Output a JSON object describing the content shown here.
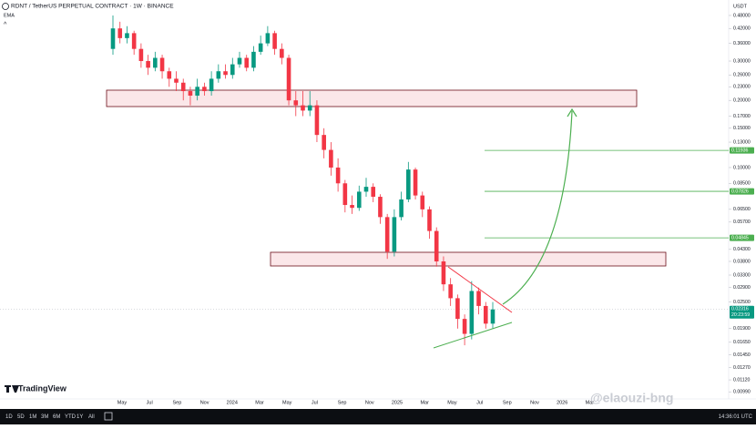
{
  "header": {
    "symbol": "RDNT / TetherUS PERPETUAL CONTRACT · 1W · BINANCE",
    "indicator": "EMA",
    "currency": "USDT"
  },
  "chart_data": {
    "type": "candlestick",
    "log_scale": true,
    "up_color": "#089981",
    "down_color": "#f23645",
    "ylim": [
      0.563,
      0.0092
    ],
    "yticks": [
      {
        "value": 0.48,
        "label": "0.48000"
      },
      {
        "value": 0.42,
        "label": "0.42000"
      },
      {
        "value": 0.36,
        "label": "0.36000"
      },
      {
        "value": 0.3,
        "label": "0.30000"
      },
      {
        "value": 0.26,
        "label": "0.26000"
      },
      {
        "value": 0.23,
        "label": "0.23000"
      },
      {
        "value": 0.2,
        "label": "0.20000"
      },
      {
        "value": 0.17,
        "label": "0.17000"
      },
      {
        "value": 0.15,
        "label": "0.15000"
      },
      {
        "value": 0.13,
        "label": "0.13000"
      },
      {
        "value": 0.1,
        "label": "0.10000"
      },
      {
        "value": 0.085,
        "label": "0.08500"
      },
      {
        "value": 0.065,
        "label": "0.06500"
      },
      {
        "value": 0.057,
        "label": "0.05700"
      },
      {
        "value": 0.043,
        "label": "0.04300"
      },
      {
        "value": 0.038,
        "label": "0.03800"
      },
      {
        "value": 0.033,
        "label": "0.03300"
      },
      {
        "value": 0.029,
        "label": "0.02900"
      },
      {
        "value": 0.025,
        "label": "0.02500"
      },
      {
        "value": 0.019,
        "label": "0.01900"
      },
      {
        "value": 0.0165,
        "label": "0.01650"
      },
      {
        "value": 0.0145,
        "label": "0.01450"
      },
      {
        "value": 0.0127,
        "label": "0.01270"
      },
      {
        "value": 0.0112,
        "label": "0.01120"
      },
      {
        "value": 0.0099,
        "label": "0.00990"
      }
    ],
    "target_levels": [
      {
        "value": 0.11936,
        "label": "0.11936"
      },
      {
        "value": 0.07826,
        "label": "0.07826"
      },
      {
        "value": 0.04845,
        "label": "0.04845"
      }
    ],
    "current_price": {
      "value": 0.02316,
      "label": "0.02316"
    },
    "countdown": "20:23:59",
    "x_labels": [
      "May",
      "Jul",
      "Sep",
      "Nov",
      "2024",
      "Mar",
      "May",
      "Jul",
      "Sep",
      "Nov",
      "2025",
      "Mar",
      "May",
      "Jul",
      "Sep",
      "Nov",
      "2026",
      "Mar"
    ],
    "open": [
      0.34,
      0.42,
      0.38,
      0.4,
      0.34,
      0.3,
      0.28,
      0.31,
      0.27,
      0.25,
      0.24,
      0.22,
      0.21,
      0.23,
      0.22,
      0.25,
      0.27,
      0.26,
      0.29,
      0.31,
      0.28,
      0.33,
      0.36,
      0.4,
      0.34,
      0.31,
      0.2,
      0.19,
      0.18,
      0.19,
      0.14,
      0.12,
      0.1,
      0.085,
      0.068,
      0.066,
      0.078,
      0.082,
      0.074,
      0.06,
      0.042,
      0.06,
      0.072,
      0.098,
      0.075,
      0.065,
      0.052,
      0.038,
      0.03,
      0.026,
      0.021,
      0.018,
      0.028,
      0.024,
      0.02
    ],
    "high": [
      0.48,
      0.45,
      0.43,
      0.41,
      0.36,
      0.32,
      0.33,
      0.32,
      0.28,
      0.27,
      0.25,
      0.23,
      0.25,
      0.24,
      0.27,
      0.29,
      0.29,
      0.31,
      0.33,
      0.32,
      0.35,
      0.39,
      0.43,
      0.41,
      0.36,
      0.32,
      0.22,
      0.22,
      0.22,
      0.2,
      0.15,
      0.13,
      0.11,
      0.088,
      0.075,
      0.083,
      0.09,
      0.085,
      0.076,
      0.062,
      0.065,
      0.078,
      0.106,
      0.1,
      0.078,
      0.067,
      0.054,
      0.04,
      0.032,
      0.027,
      0.022,
      0.031,
      0.029,
      0.025,
      0.025
    ],
    "low": [
      0.32,
      0.36,
      0.36,
      0.32,
      0.28,
      0.26,
      0.27,
      0.25,
      0.23,
      0.22,
      0.2,
      0.19,
      0.2,
      0.21,
      0.21,
      0.24,
      0.25,
      0.25,
      0.28,
      0.27,
      0.27,
      0.32,
      0.35,
      0.32,
      0.29,
      0.19,
      0.17,
      0.17,
      0.17,
      0.13,
      0.11,
      0.092,
      0.078,
      0.063,
      0.062,
      0.064,
      0.074,
      0.07,
      0.056,
      0.039,
      0.04,
      0.058,
      0.07,
      0.072,
      0.06,
      0.048,
      0.036,
      0.028,
      0.024,
      0.019,
      0.016,
      0.017,
      0.022,
      0.019,
      0.019
    ],
    "close": [
      0.42,
      0.38,
      0.4,
      0.34,
      0.3,
      0.28,
      0.31,
      0.27,
      0.25,
      0.24,
      0.22,
      0.21,
      0.23,
      0.22,
      0.25,
      0.27,
      0.26,
      0.29,
      0.31,
      0.28,
      0.33,
      0.36,
      0.4,
      0.34,
      0.31,
      0.2,
      0.19,
      0.18,
      0.19,
      0.14,
      0.12,
      0.1,
      0.085,
      0.068,
      0.066,
      0.078,
      0.082,
      0.074,
      0.06,
      0.042,
      0.06,
      0.072,
      0.098,
      0.075,
      0.065,
      0.052,
      0.038,
      0.03,
      0.026,
      0.021,
      0.018,
      0.028,
      0.024,
      0.02,
      0.02316
    ]
  },
  "footer": {
    "logo": "TradingView",
    "ranges": [
      "1D",
      "5D",
      "1M",
      "3M",
      "6M",
      "YTD",
      "1Y",
      "All"
    ],
    "clock": "14:36:01 UTC",
    "watermark": "@elaouzi-bng"
  }
}
